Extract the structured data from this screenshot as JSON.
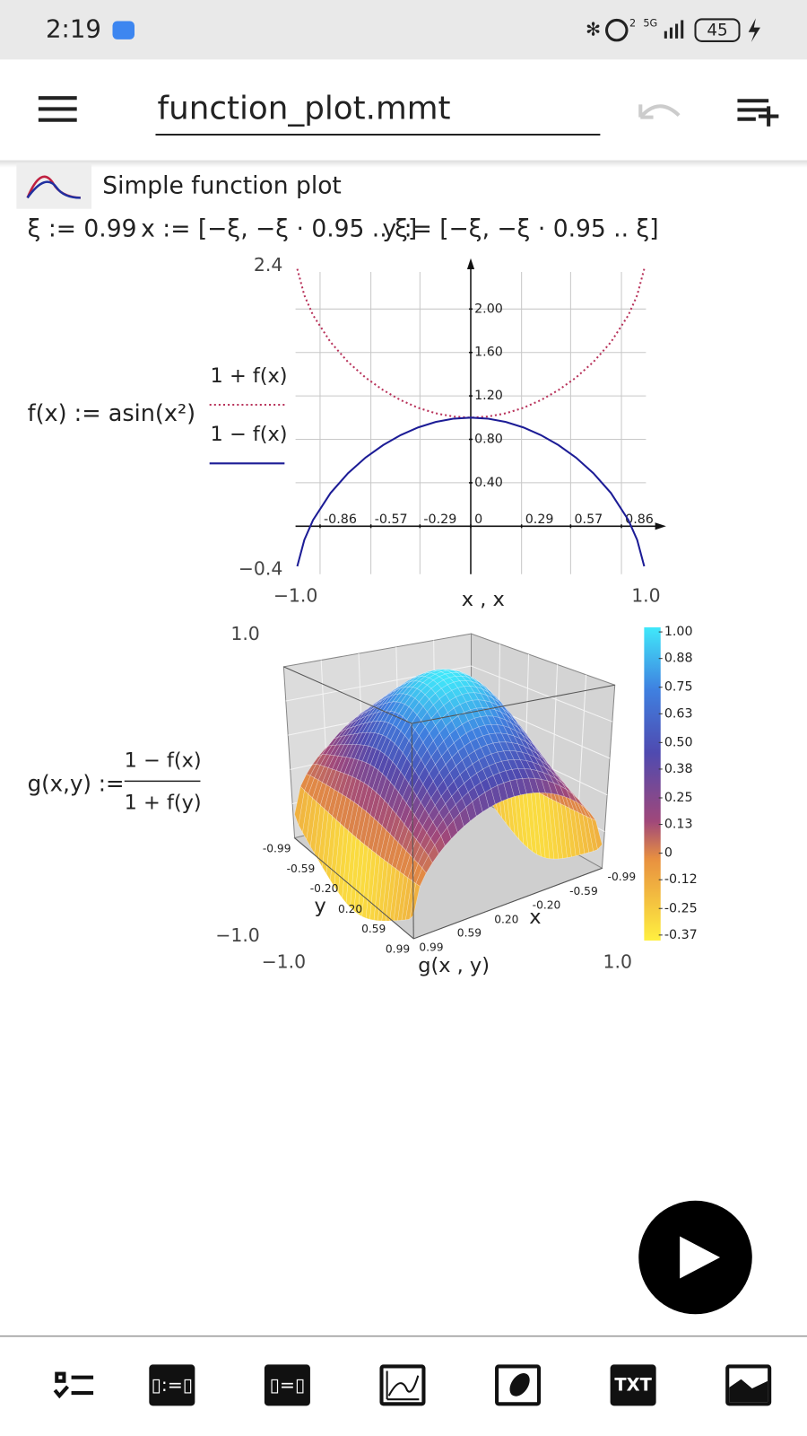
{
  "status_bar": {
    "time": "2:19",
    "sim": "2",
    "network": "5G",
    "battery": "45"
  },
  "toolbar": {
    "title": "function_plot.mmt"
  },
  "worksheet": {
    "header": "Simple function plot",
    "definitions": [
      "ξ := 0.99",
      "x := [−ξ, −ξ · 0.95 .. ξ]",
      "y := [−ξ, −ξ · 0.95 .. ξ]"
    ],
    "f_formula": "f(x) := asin(x²)",
    "g_formula": {
      "lhs": "g(x,y) :=",
      "numerator": "1 − f(x)",
      "denominator": "1 + f(y)"
    }
  },
  "chart_data": [
    {
      "type": "line",
      "xlabel": "x , x",
      "x": [
        -0.99,
        -0.95,
        -0.9,
        -0.8,
        -0.7,
        -0.6,
        -0.5,
        -0.4,
        -0.3,
        -0.2,
        -0.1,
        0,
        0.1,
        0.2,
        0.3,
        0.4,
        0.5,
        0.6,
        0.7,
        0.8,
        0.9,
        0.95,
        0.99
      ],
      "series": [
        {
          "name": "1 + f(x)",
          "color": "#b8325a",
          "style": "dotted",
          "values": [
            2.37,
            2.127,
            1.944,
            1.695,
            1.512,
            1.368,
            1.253,
            1.161,
            1.09,
            1.04,
            1.01,
            1.0,
            1.01,
            1.04,
            1.09,
            1.161,
            1.253,
            1.368,
            1.512,
            1.695,
            1.944,
            2.127,
            2.37
          ]
        },
        {
          "name": "1 − f(x)",
          "color": "#1c1c96",
          "style": "solid",
          "values": [
            -0.37,
            -0.127,
            0.056,
            0.306,
            0.488,
            0.632,
            0.747,
            0.839,
            0.91,
            0.96,
            0.99,
            1.0,
            0.99,
            0.96,
            0.91,
            0.839,
            0.747,
            0.632,
            0.488,
            0.306,
            0.056,
            -0.127,
            -0.37
          ]
        }
      ],
      "xlim": [
        {
          "value": -1,
          "label": "−1.0"
        },
        {
          "value": 1,
          "label": "1.0"
        }
      ],
      "ylim": [
        {
          "value": -0.4,
          "label": "−0.4"
        },
        {
          "value": 2.4,
          "label": "2.4"
        }
      ],
      "xticks": [
        -0.86,
        -0.57,
        -0.29,
        0,
        0.29,
        0.57,
        0.86
      ],
      "yticks": [
        {
          "value": 0.4,
          "label": "0.40"
        },
        {
          "value": 0.8,
          "label": "0.80"
        },
        {
          "value": 1.2,
          "label": "1.20"
        },
        {
          "value": 1.6,
          "label": "1.60"
        },
        {
          "value": 2,
          "label": "2.00"
        }
      ],
      "grid": true
    },
    {
      "type": "surface",
      "label": "g(x , y)",
      "xlabel": "x",
      "ylabel": "y",
      "xlim": [
        {
          "value": -1,
          "label": "−1.0"
        },
        {
          "value": 1,
          "label": "1.0"
        }
      ],
      "zlim": [
        {
          "value": -1,
          "label": "−1.0"
        },
        {
          "value": 1,
          "label": "1.0"
        }
      ],
      "xticks": [
        -0.99,
        -0.59,
        {
          "value": -0.2,
          "label": "-0.20"
        },
        {
          "value": 0.2,
          "label": "0.20"
        },
        0.59,
        0.99
      ],
      "yticks": [
        -0.99,
        -0.59,
        {
          "value": -0.2,
          "label": "-0.20"
        },
        {
          "value": 0.2,
          "label": "0.20"
        },
        0.59,
        0.99
      ],
      "colorbar_ticks": [
        {
          "value": 1,
          "label": "1.00"
        },
        0.88,
        0.75,
        0.63,
        {
          "value": 0.5,
          "label": "0.50"
        },
        0.38,
        0.25,
        0.13,
        0,
        -0.12,
        -0.25,
        -0.37
      ]
    }
  ],
  "bottom_bar": {
    "buttons": [
      "▯:=▯",
      "▯=▯",
      "TXT"
    ]
  }
}
